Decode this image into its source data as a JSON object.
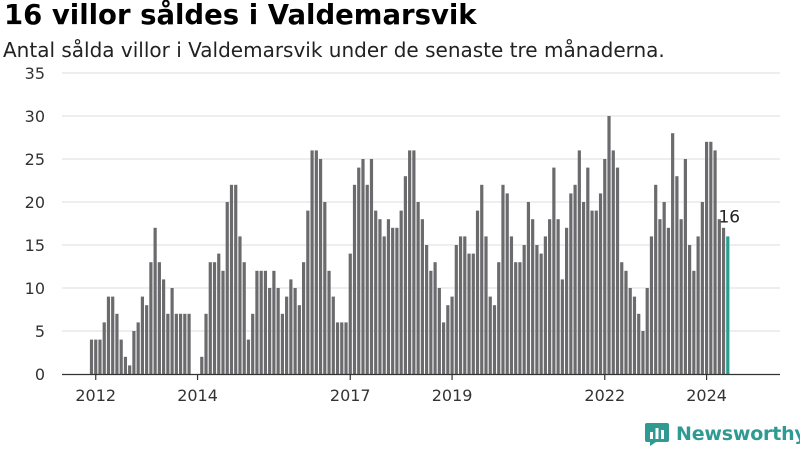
{
  "title": "16 villor såldes i Valdemarsvik",
  "subtitle": "Antal sålda villor i Valdemarsvik under de senaste tre månaderna.",
  "logo_text": "Newsworthy",
  "colors": {
    "bar": "#6b6b6e",
    "highlight": "#2a9d8f",
    "grid": "#dddddd",
    "axis": "#333333",
    "text": "#333333"
  },
  "chart_data": {
    "type": "bar",
    "title": "16 villor såldes i Valdemarsvik",
    "subtitle": "Antal sålda villor i Valdemarsvik under de senaste tre månaderna.",
    "xlabel": "",
    "ylabel": "",
    "ylim": [
      0,
      35
    ],
    "yticks": [
      0,
      5,
      10,
      15,
      20,
      25,
      30,
      35
    ],
    "grid": true,
    "xtick_labels": [
      {
        "label": "2012",
        "index": 1
      },
      {
        "label": "2014",
        "index": 25
      },
      {
        "label": "2017",
        "index": 61
      },
      {
        "label": "2019",
        "index": 85
      },
      {
        "label": "2022",
        "index": 121
      },
      {
        "label": "2024",
        "index": 145
      }
    ],
    "values": [
      4,
      4,
      4,
      6,
      9,
      9,
      7,
      4,
      2,
      1,
      5,
      6,
      9,
      8,
      13,
      17,
      13,
      11,
      7,
      10,
      7,
      7,
      7,
      7,
      0,
      0,
      2,
      7,
      13,
      13,
      14,
      12,
      20,
      22,
      22,
      16,
      13,
      4,
      7,
      12,
      12,
      12,
      10,
      12,
      10,
      7,
      9,
      11,
      10,
      8,
      13,
      19,
      26,
      26,
      25,
      20,
      12,
      9,
      6,
      6,
      6,
      14,
      22,
      24,
      25,
      22,
      25,
      19,
      18,
      16,
      18,
      17,
      17,
      19,
      23,
      26,
      26,
      20,
      18,
      15,
      12,
      13,
      10,
      6,
      8,
      9,
      15,
      16,
      16,
      14,
      14,
      19,
      22,
      16,
      9,
      8,
      13,
      22,
      21,
      16,
      13,
      13,
      15,
      20,
      18,
      15,
      14,
      16,
      18,
      24,
      18,
      11,
      17,
      21,
      22,
      26,
      20,
      24,
      19,
      19,
      21,
      25,
      30,
      26,
      24,
      13,
      12,
      10,
      9,
      7,
      5,
      10,
      16,
      22,
      18,
      20,
      17,
      28,
      23,
      18,
      25,
      15,
      12,
      16,
      20,
      27,
      27,
      26,
      18,
      17,
      16
    ],
    "highlight_value_label": "16"
  }
}
